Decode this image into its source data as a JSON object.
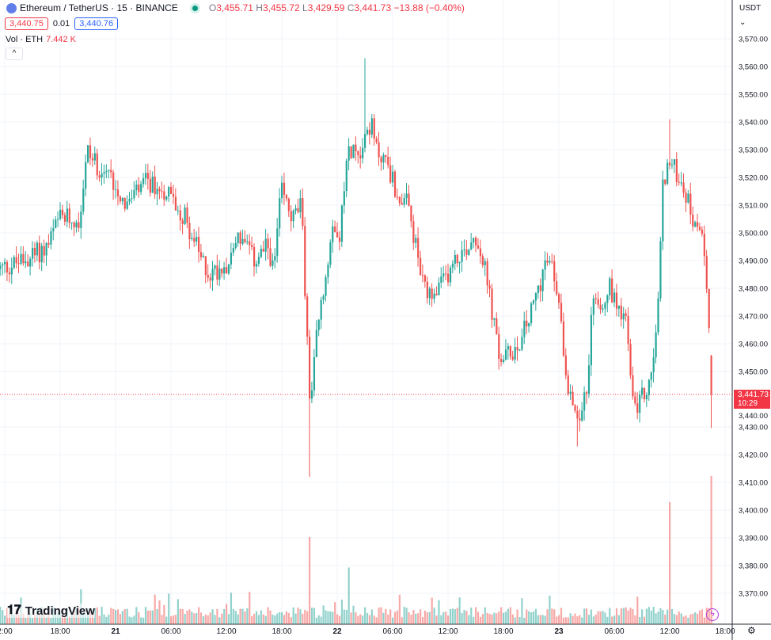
{
  "legend": {
    "symbol": "Ethereum / TetherUS · 15 · BINANCE",
    "o_label": "O",
    "o": "3,455.71",
    "h_label": "H",
    "h": "3,455.72",
    "l_label": "L",
    "l": "3,429.59",
    "c_label": "C",
    "c": "3,441.73",
    "change": "−13.88 (−0.40%)",
    "bid": "3,440.75",
    "spread": "0.01",
    "ask": "3,440.76",
    "vol_label": "Vol · ETH",
    "vol_value": "7.442 K",
    "collapse": "^"
  },
  "currency": "USDT ⌄",
  "current_price": {
    "price": "3,441.73",
    "countdown": "10:29"
  },
  "brand": "TradingView",
  "settings_icon": "⚙",
  "colors": {
    "up": "#26a69a",
    "down": "#ef5350",
    "grid": "#f0f3fa"
  },
  "chart_data": {
    "type": "candlestick",
    "x_unit": "hours since 20th 12:00, 15-minute candles",
    "ylim": [
      3365,
      3575
    ],
    "price_ticks": [
      "3,570.00",
      "3,560.00",
      "3,550.00",
      "3,540.00",
      "3,530.00",
      "3,520.00",
      "3,510.00",
      "3,500.00",
      "3,490.00",
      "3,480.00",
      "3,470.00",
      "3,460.00",
      "3,450.00",
      "3,440.00",
      "3,430.00",
      "3,420.00",
      "3,410.00",
      "3,400.00",
      "3,390.00",
      "3,380.00",
      "3,370.00"
    ],
    "price_tick_values": [
      3570,
      3560,
      3550,
      3540,
      3530,
      3520,
      3510,
      3500,
      3490,
      3480,
      3470,
      3460,
      3450,
      3440,
      3430,
      3420,
      3410,
      3400,
      3390,
      3380,
      3370
    ],
    "time_ticks": [
      "2:00",
      "18:00",
      "21",
      "06:00",
      "12:00",
      "18:00",
      "22",
      "06:00",
      "12:00",
      "18:00",
      "23",
      "06:00",
      "12:00",
      "18:00"
    ],
    "time_tick_hours": [
      0,
      6,
      12,
      18,
      24,
      30,
      36,
      42,
      48,
      54,
      60,
      66,
      72,
      78
    ],
    "close_path": [
      [
        -0.5,
        3487
      ],
      [
        2.1,
        3490
      ],
      [
        4.6,
        3495
      ],
      [
        5.9,
        3505
      ],
      [
        8.1,
        3505
      ],
      [
        8.9,
        3530
      ],
      [
        9.8,
        3525
      ],
      [
        11.5,
        3520
      ],
      [
        13.2,
        3510
      ],
      [
        15.3,
        3518
      ],
      [
        17.5,
        3515
      ],
      [
        19.6,
        3505
      ],
      [
        21.3,
        3490
      ],
      [
        22.2,
        3485
      ],
      [
        24.3,
        3490
      ],
      [
        25.2,
        3500
      ],
      [
        26.9,
        3490
      ],
      [
        28.6,
        3495
      ],
      [
        29.1,
        3485
      ],
      [
        29.9,
        3515
      ],
      [
        31.2,
        3505
      ],
      [
        32.1,
        3510
      ],
      [
        32.5,
        3480
      ],
      [
        33.1,
        3435
      ],
      [
        33.8,
        3465
      ],
      [
        34.6,
        3480
      ],
      [
        35.5,
        3505
      ],
      [
        36.3,
        3500
      ],
      [
        37.2,
        3530
      ],
      [
        38.5,
        3530
      ],
      [
        39.6,
        3540
      ],
      [
        40.2,
        3530
      ],
      [
        41.5,
        3525
      ],
      [
        42.3,
        3515
      ],
      [
        43.6,
        3510
      ],
      [
        44.5,
        3495
      ],
      [
        45.3,
        3480
      ],
      [
        46.2,
        3475
      ],
      [
        47.1,
        3480
      ],
      [
        47.9,
        3485
      ],
      [
        48.8,
        3490
      ],
      [
        50.1,
        3495
      ],
      [
        50.9,
        3500
      ],
      [
        51.8,
        3490
      ],
      [
        52.6,
        3475
      ],
      [
        53.5,
        3455
      ],
      [
        54.3,
        3455
      ],
      [
        55.6,
        3460
      ],
      [
        56.9,
        3470
      ],
      [
        58.6,
        3490
      ],
      [
        59.5,
        3485
      ],
      [
        60.3,
        3465
      ],
      [
        61.2,
        3440
      ],
      [
        62.1,
        3435
      ],
      [
        62.9,
        3440
      ],
      [
        63.8,
        3480
      ],
      [
        64.6,
        3475
      ],
      [
        65.5,
        3480
      ],
      [
        66.3,
        3475
      ],
      [
        67.2,
        3470
      ],
      [
        68.1,
        3435
      ],
      [
        68.9,
        3440
      ],
      [
        69.8,
        3445
      ],
      [
        70.6,
        3465
      ],
      [
        71.3,
        3520
      ],
      [
        71.9,
        3525
      ],
      [
        73.2,
        3520
      ],
      [
        74.1,
        3510
      ],
      [
        74.9,
        3500
      ],
      [
        75.8,
        3495
      ],
      [
        76.4,
        3455
      ],
      [
        76.5,
        3441.73
      ]
    ],
    "wick_extremes": [
      [
        33.1,
        3412
      ],
      [
        39.0,
        3563
      ],
      [
        62.0,
        3423
      ],
      [
        72.0,
        3541
      ],
      [
        76.5,
        3429.59
      ]
    ],
    "volume_spikes": [
      [
        33.1,
        1.0
      ],
      [
        72.0,
        1.4
      ],
      [
        76.4,
        1.7
      ],
      [
        37.2,
        0.65
      ],
      [
        8.2,
        0.4
      ]
    ]
  }
}
